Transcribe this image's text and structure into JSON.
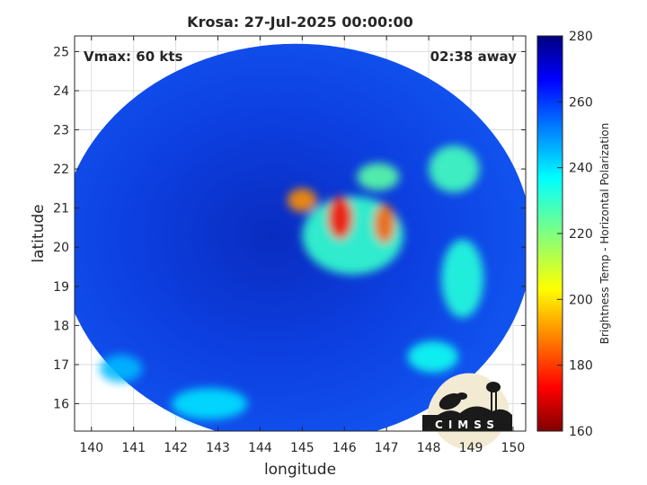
{
  "chart_data": {
    "type": "heatmap",
    "title": "Krosa: 27-Jul-2025 00:00:00",
    "xlabel": "longitude",
    "ylabel": "latitude",
    "xlim": [
      139.6,
      150.3
    ],
    "ylim": [
      15.3,
      25.4
    ],
    "xticks": [
      "140",
      "141",
      "142",
      "143",
      "144",
      "145",
      "146",
      "147",
      "148",
      "149",
      "150"
    ],
    "yticks": [
      "16",
      "17",
      "18",
      "19",
      "20",
      "21",
      "22",
      "23",
      "24",
      "25"
    ],
    "grid": true,
    "annotations": {
      "left": "Vmax: 60 kts",
      "right": "02:38 away"
    },
    "colorbar": {
      "label": "Brightness Temp - Horizontal Polarization",
      "range": [
        160,
        280
      ],
      "ticks": [
        "160",
        "180",
        "200",
        "220",
        "240",
        "260",
        "280"
      ],
      "colormap": "jet"
    },
    "swath": {
      "center": [
        144.85,
        20.1
      ],
      "radius_lon": 5.6,
      "radius_lat": 5.1
    },
    "features": [
      {
        "lon": 145.0,
        "lat": 21.2,
        "tb": 190,
        "rx": 0.35,
        "ry": 0.3
      },
      {
        "lon": 145.9,
        "lat": 20.75,
        "tb": 175,
        "rx": 0.3,
        "ry": 0.55
      },
      {
        "lon": 146.95,
        "lat": 20.6,
        "tb": 185,
        "rx": 0.25,
        "ry": 0.5
      },
      {
        "lon": 146.8,
        "lat": 21.8,
        "tb": 225,
        "rx": 0.5,
        "ry": 0.35
      },
      {
        "lon": 146.2,
        "lat": 20.3,
        "tb": 230,
        "rx": 1.2,
        "ry": 1.0
      },
      {
        "lon": 148.6,
        "lat": 22.0,
        "tb": 228,
        "rx": 0.6,
        "ry": 0.6
      },
      {
        "lon": 148.8,
        "lat": 19.2,
        "tb": 232,
        "rx": 0.5,
        "ry": 1.0
      },
      {
        "lon": 148.1,
        "lat": 17.2,
        "tb": 235,
        "rx": 0.6,
        "ry": 0.4
      },
      {
        "lon": 142.8,
        "lat": 16.0,
        "tb": 240,
        "rx": 0.9,
        "ry": 0.4
      },
      {
        "lon": 140.7,
        "lat": 16.9,
        "tb": 245,
        "rx": 0.5,
        "ry": 0.35
      }
    ]
  },
  "logo": {
    "text": "CIMSS"
  }
}
